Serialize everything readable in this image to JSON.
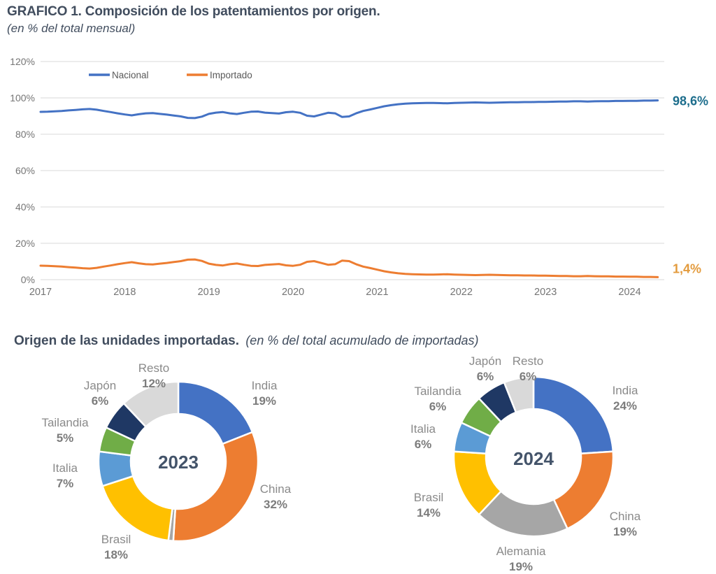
{
  "section2": {
    "title_bold": "Origen de las unidades importadas.",
    "title_italic": "(en % del total acumulado de importadas)"
  },
  "chart_data": [
    {
      "type": "line",
      "title": "GRAFICO 1. Composición de los patentamientos por origen.",
      "subtitle": "(en % del total mensual)",
      "x_frequency": "monthly",
      "x_start": "2017-01",
      "x_end": "2024-05",
      "x_tick_labels": [
        "2017",
        "2018",
        "2019",
        "2020",
        "2021",
        "2022",
        "2023",
        "2024"
      ],
      "y_ticks": [
        "0%",
        "20%",
        "40%",
        "60%",
        "80%",
        "100%",
        "120%"
      ],
      "ylim": [
        0,
        120
      ],
      "grid": true,
      "legend_position": "top",
      "series": [
        {
          "name": "Nacional",
          "color": "#4472C4",
          "end_label": "98,6%",
          "end_label_color": "#1C6D8C",
          "values": [
            92.3,
            92.4,
            92.6,
            92.8,
            93.1,
            93.4,
            93.7,
            93.9,
            93.5,
            92.8,
            92.2,
            91.5,
            90.9,
            90.4,
            91.0,
            91.5,
            91.6,
            91.2,
            90.8,
            90.3,
            89.8,
            89.0,
            88.9,
            89.7,
            91.2,
            91.9,
            92.2,
            91.5,
            91.1,
            91.8,
            92.4,
            92.5,
            91.9,
            91.6,
            91.4,
            92.1,
            92.4,
            91.8,
            90.2,
            89.8,
            90.8,
            91.8,
            91.5,
            89.5,
            89.8,
            91.5,
            92.8,
            93.6,
            94.5,
            95.4,
            96.0,
            96.5,
            96.8,
            97.0,
            97.1,
            97.2,
            97.2,
            97.1,
            97.0,
            97.2,
            97.3,
            97.4,
            97.5,
            97.4,
            97.3,
            97.4,
            97.5,
            97.6,
            97.6,
            97.7,
            97.7,
            97.8,
            97.8,
            97.9,
            98.0,
            98.0,
            98.1,
            98.1,
            98.0,
            98.1,
            98.2,
            98.2,
            98.3,
            98.3,
            98.4,
            98.4,
            98.5,
            98.5,
            98.6
          ]
        },
        {
          "name": "Importado",
          "color": "#ED7D31",
          "end_label": "1,4%",
          "end_label_color": "#E39B3D",
          "values": [
            7.7,
            7.6,
            7.4,
            7.2,
            6.9,
            6.6,
            6.3,
            6.1,
            6.5,
            7.2,
            7.8,
            8.5,
            9.1,
            9.6,
            9.0,
            8.5,
            8.4,
            8.8,
            9.2,
            9.7,
            10.2,
            11.0,
            11.1,
            10.3,
            8.8,
            8.1,
            7.8,
            8.5,
            8.9,
            8.2,
            7.6,
            7.5,
            8.1,
            8.4,
            8.6,
            7.9,
            7.6,
            8.2,
            9.8,
            10.2,
            9.2,
            8.2,
            8.5,
            10.5,
            10.2,
            8.5,
            7.2,
            6.4,
            5.5,
            4.6,
            4.0,
            3.5,
            3.2,
            3.0,
            2.9,
            2.8,
            2.8,
            2.9,
            3.0,
            2.8,
            2.7,
            2.6,
            2.5,
            2.6,
            2.7,
            2.6,
            2.5,
            2.4,
            2.4,
            2.3,
            2.3,
            2.2,
            2.2,
            2.1,
            2.0,
            2.0,
            1.9,
            1.9,
            2.0,
            1.9,
            1.8,
            1.8,
            1.7,
            1.7,
            1.6,
            1.6,
            1.5,
            1.5,
            1.4
          ]
        }
      ]
    },
    {
      "type": "pie",
      "subtype": "donut",
      "title": "2023",
      "slices": [
        {
          "label": "India",
          "value": 19,
          "color": "#4472C4"
        },
        {
          "label": "China",
          "value": 32,
          "color": "#ED7D31"
        },
        {
          "label": "",
          "value": 1,
          "color": "#A6A6A6"
        },
        {
          "label": "Brasil",
          "value": 18,
          "color": "#FFC000"
        },
        {
          "label": "Italia",
          "value": 7,
          "color": "#5B9BD5"
        },
        {
          "label": "Tailandia",
          "value": 5,
          "color": "#70AD47"
        },
        {
          "label": "Japón",
          "value": 6,
          "color": "#1F3864"
        },
        {
          "label": "Resto",
          "value": 12,
          "color": "#D9D9D9"
        }
      ]
    },
    {
      "type": "pie",
      "subtype": "donut",
      "title": "2024",
      "slices": [
        {
          "label": "India",
          "value": 24,
          "color": "#4472C4"
        },
        {
          "label": "China",
          "value": 19,
          "color": "#ED7D31"
        },
        {
          "label": "Alemania",
          "value": 19,
          "color": "#A6A6A6"
        },
        {
          "label": "Brasil",
          "value": 14,
          "color": "#FFC000"
        },
        {
          "label": "Italia",
          "value": 6,
          "color": "#5B9BD5"
        },
        {
          "label": "Tailandia",
          "value": 6,
          "color": "#70AD47"
        },
        {
          "label": "Japón",
          "value": 6,
          "color": "#1F3864"
        },
        {
          "label": "Resto",
          "value": 6,
          "color": "#D9D9D9"
        }
      ]
    }
  ]
}
